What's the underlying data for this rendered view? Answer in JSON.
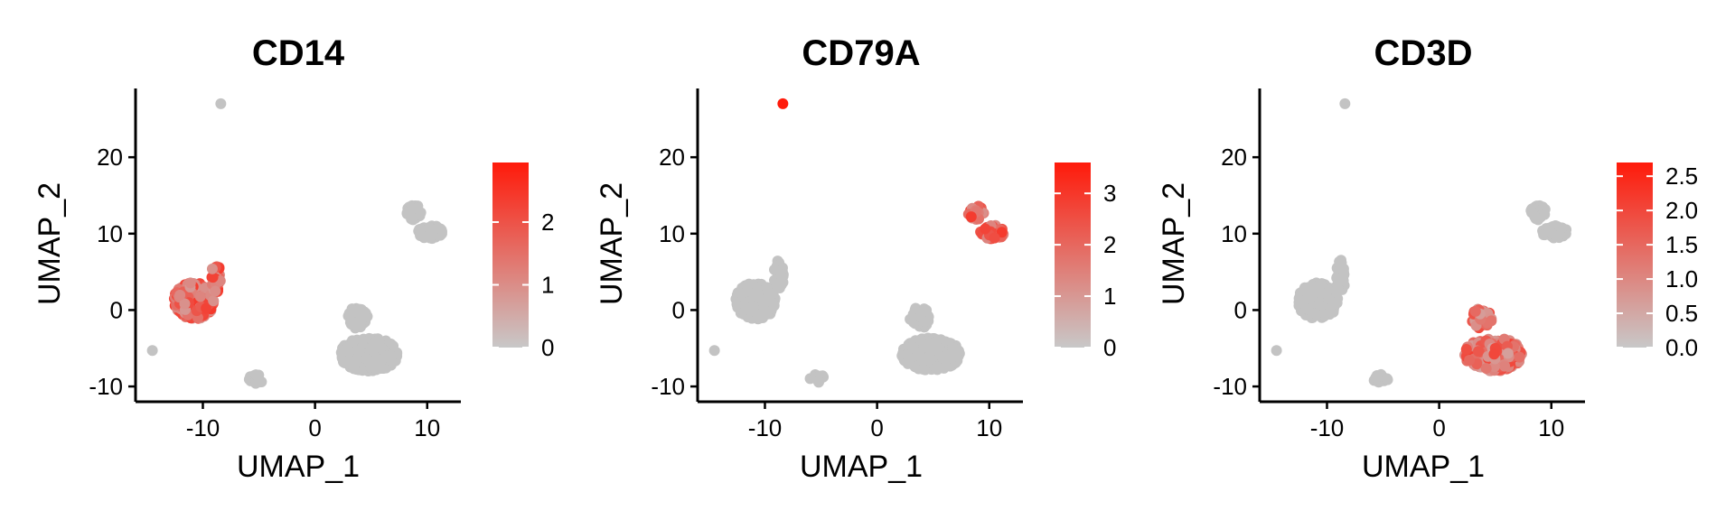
{
  "chart_data": [
    {
      "type": "scatter",
      "title": "CD14",
      "xlabel": "UMAP_1",
      "ylabel": "UMAP_2",
      "xlim": [
        -16,
        13
      ],
      "ylim": [
        -12,
        29
      ],
      "xticks": [
        -10,
        0,
        10
      ],
      "yticks": [
        -10,
        0,
        10,
        20
      ],
      "xtick_labels": [
        "-10",
        "0",
        "10"
      ],
      "ytick_labels": [
        "-10",
        "0",
        "10",
        "20"
      ],
      "colorbar": {
        "min": 0,
        "max": 2.95,
        "ticks": [
          0,
          1,
          2
        ],
        "tick_labels": [
          "0",
          "1",
          "2"
        ],
        "low_color": "#c8c8c8",
        "high_color": "#ff1a0a"
      },
      "highlight_cluster": "mono",
      "highlight_level": 0.55,
      "grid": false,
      "legend": "right"
    },
    {
      "type": "scatter",
      "title": "CD79A",
      "xlabel": "UMAP_1",
      "ylabel": "UMAP_2",
      "xlim": [
        -16,
        13
      ],
      "ylim": [
        -12,
        29
      ],
      "xticks": [
        -10,
        0,
        10
      ],
      "yticks": [
        -10,
        0,
        10,
        20
      ],
      "xtick_labels": [
        "-10",
        "0",
        "10"
      ],
      "ytick_labels": [
        "-10",
        "0",
        "10",
        "20"
      ],
      "colorbar": {
        "min": 0,
        "max": 3.6,
        "ticks": [
          0,
          1,
          2,
          3
        ],
        "tick_labels": [
          "0",
          "1",
          "2",
          "3"
        ],
        "low_color": "#c8c8c8",
        "high_color": "#ff1a0a"
      },
      "highlight_cluster": "bcell",
      "highlight_level": 0.6,
      "grid": false,
      "legend": "right"
    },
    {
      "type": "scatter",
      "title": "CD3D",
      "xlabel": "UMAP_1",
      "ylabel": "UMAP_2",
      "xlim": [
        -16,
        13
      ],
      "ylim": [
        -12,
        29
      ],
      "xticks": [
        -10,
        0,
        10
      ],
      "yticks": [
        -10,
        0,
        10,
        20
      ],
      "xtick_labels": [
        "-10",
        "0",
        "10"
      ],
      "ytick_labels": [
        "-10",
        "0",
        "10",
        "20"
      ],
      "colorbar": {
        "min": 0,
        "max": 2.7,
        "ticks": [
          0,
          0.5,
          1,
          1.5,
          2,
          2.5
        ],
        "tick_labels": [
          "0.0",
          "0.5",
          "1.0",
          "1.5",
          "2.0",
          "2.5"
        ],
        "low_color": "#c8c8c8",
        "high_color": "#ff1a0a"
      },
      "highlight_cluster": "tcell",
      "highlight_level": 0.5,
      "grid": false,
      "legend": "right"
    }
  ],
  "clusters": {
    "mono": {
      "cx": -10.8,
      "cy": 1.2,
      "rx": 1.8,
      "ry": 2.4
    },
    "mono_tail": {
      "cx": -8.8,
      "cy": 4.5,
      "rx": 0.45,
      "ry": 2.2
    },
    "tcell": {
      "cx": 4.8,
      "cy": -5.8,
      "rx": 2.6,
      "ry": 2.2
    },
    "tcell_top": {
      "cx": 3.8,
      "cy": -1.0,
      "rx": 0.9,
      "ry": 1.4
    },
    "bcell": {
      "cx": 10.3,
      "cy": 10.2,
      "rx": 1.1,
      "ry": 0.9
    },
    "bcell_tail": {
      "cx": 8.8,
      "cy": 12.8,
      "rx": 0.7,
      "ry": 1.0
    },
    "platelet": {
      "cx": -5.2,
      "cy": -9.0,
      "rx": 0.8,
      "ry": 0.6
    },
    "outlier_top": {
      "x": -8.4,
      "y": 27.0
    },
    "outlier_left": {
      "x": -14.5,
      "y": -5.3
    }
  }
}
